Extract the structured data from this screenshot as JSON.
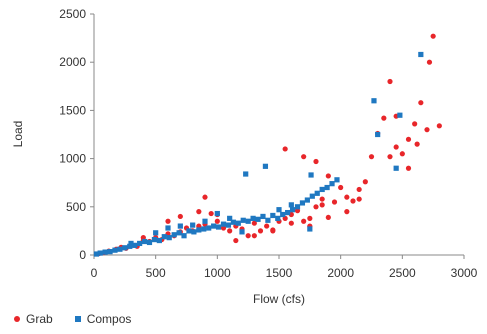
{
  "chart_data": {
    "type": "scatter",
    "xlabel": "Flow (cfs)",
    "ylabel": "Load",
    "xlim": [
      0,
      3000
    ],
    "ylim": [
      0,
      2500
    ],
    "x_ticks": [
      "0",
      "500",
      "1000",
      "1500",
      "2000",
      "2500",
      "3000"
    ],
    "y_ticks": [
      "0",
      "500",
      "1000",
      "1500",
      "2000",
      "2500"
    ],
    "grid": false,
    "legend_position": "bottom-left",
    "series": [
      {
        "name": "Grab",
        "color": "#e8262a",
        "marker": "circle",
        "points": [
          [
            40,
            15
          ],
          [
            80,
            25
          ],
          [
            120,
            40
          ],
          [
            180,
            60
          ],
          [
            220,
            80
          ],
          [
            260,
            70
          ],
          [
            300,
            110
          ],
          [
            350,
            90
          ],
          [
            400,
            150
          ],
          [
            450,
            140
          ],
          [
            500,
            180
          ],
          [
            550,
            160
          ],
          [
            600,
            220
          ],
          [
            650,
            200
          ],
          [
            700,
            240
          ],
          [
            750,
            280
          ],
          [
            800,
            250
          ],
          [
            850,
            300
          ],
          [
            900,
            320
          ],
          [
            950,
            430
          ],
          [
            1000,
            350
          ],
          [
            1050,
            280
          ],
          [
            1100,
            250
          ],
          [
            1150,
            300
          ],
          [
            1200,
            270
          ],
          [
            1250,
            200
          ],
          [
            1300,
            330
          ],
          [
            1350,
            250
          ],
          [
            1400,
            300
          ],
          [
            1450,
            260
          ],
          [
            1500,
            350
          ],
          [
            1550,
            380
          ],
          [
            1600,
            420
          ],
          [
            1650,
            460
          ],
          [
            1700,
            350
          ],
          [
            1750,
            380
          ],
          [
            1800,
            500
          ],
          [
            1850,
            580
          ],
          [
            1900,
            390
          ],
          [
            1950,
            550
          ],
          [
            2000,
            700
          ],
          [
            2050,
            600
          ],
          [
            2100,
            560
          ],
          [
            2150,
            680
          ],
          [
            2200,
            760
          ],
          [
            2250,
            1020
          ],
          [
            2300,
            1260
          ],
          [
            2350,
            1420
          ],
          [
            2400,
            1020
          ],
          [
            2450,
            1120
          ],
          [
            2500,
            1050
          ],
          [
            2550,
            1200
          ],
          [
            2600,
            1360
          ],
          [
            2650,
            1580
          ],
          [
            2700,
            1300
          ],
          [
            2750,
            2270
          ],
          [
            2800,
            1340
          ],
          [
            1550,
            1100
          ],
          [
            1800,
            970
          ],
          [
            2400,
            1800
          ],
          [
            2450,
            1440
          ],
          [
            2550,
            900
          ],
          [
            2620,
            1150
          ],
          [
            2720,
            2000
          ],
          [
            2150,
            580
          ],
          [
            2050,
            450
          ],
          [
            1900,
            820
          ],
          [
            1700,
            1020
          ],
          [
            1450,
            250
          ],
          [
            1300,
            200
          ],
          [
            1150,
            150
          ],
          [
            1000,
            420
          ],
          [
            900,
            600
          ],
          [
            700,
            400
          ],
          [
            600,
            350
          ],
          [
            850,
            450
          ],
          [
            400,
            180
          ],
          [
            1600,
            330
          ],
          [
            1750,
            300
          ],
          [
            1850,
            520
          ]
        ]
      },
      {
        "name": "Compos",
        "color": "#1f78c1",
        "marker": "square",
        "points": [
          [
            20,
            10
          ],
          [
            50,
            20
          ],
          [
            90,
            30
          ],
          [
            130,
            35
          ],
          [
            170,
            50
          ],
          [
            210,
            60
          ],
          [
            250,
            75
          ],
          [
            290,
            90
          ],
          [
            330,
            100
          ],
          [
            370,
            120
          ],
          [
            410,
            140
          ],
          [
            450,
            130
          ],
          [
            490,
            160
          ],
          [
            530,
            150
          ],
          [
            570,
            190
          ],
          [
            610,
            180
          ],
          [
            650,
            210
          ],
          [
            690,
            230
          ],
          [
            730,
            200
          ],
          [
            770,
            250
          ],
          [
            810,
            240
          ],
          [
            850,
            260
          ],
          [
            890,
            270
          ],
          [
            930,
            280
          ],
          [
            970,
            300
          ],
          [
            1010,
            290
          ],
          [
            1050,
            320
          ],
          [
            1090,
            310
          ],
          [
            1130,
            340
          ],
          [
            1170,
            330
          ],
          [
            1210,
            360
          ],
          [
            1250,
            350
          ],
          [
            1290,
            380
          ],
          [
            1330,
            370
          ],
          [
            1370,
            400
          ],
          [
            1410,
            360
          ],
          [
            1450,
            410
          ],
          [
            1490,
            380
          ],
          [
            1530,
            420
          ],
          [
            1570,
            440
          ],
          [
            1610,
            470
          ],
          [
            1650,
            500
          ],
          [
            1690,
            540
          ],
          [
            1730,
            570
          ],
          [
            1770,
            610
          ],
          [
            1810,
            640
          ],
          [
            1850,
            680
          ],
          [
            1890,
            700
          ],
          [
            1930,
            740
          ],
          [
            1970,
            780
          ],
          [
            1230,
            840
          ],
          [
            1390,
            920
          ],
          [
            1760,
            830
          ],
          [
            2270,
            1600
          ],
          [
            2300,
            1250
          ],
          [
            2450,
            900
          ],
          [
            2480,
            1450
          ],
          [
            2650,
            2080
          ],
          [
            1600,
            520
          ],
          [
            1000,
            430
          ],
          [
            1100,
            380
          ],
          [
            1500,
            470
          ],
          [
            1750,
            270
          ],
          [
            900,
            350
          ],
          [
            700,
            300
          ],
          [
            800,
            310
          ],
          [
            600,
            280
          ],
          [
            500,
            230
          ],
          [
            300,
            120
          ],
          [
            1200,
            240
          ]
        ]
      }
    ]
  }
}
